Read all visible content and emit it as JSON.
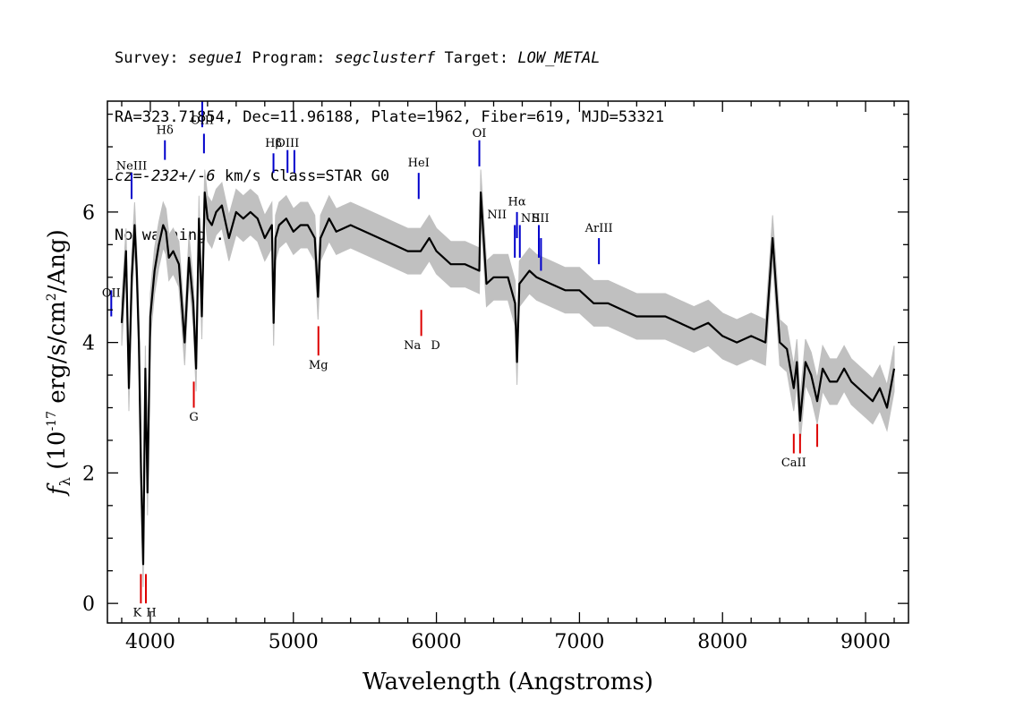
{
  "header": {
    "line1": {
      "survey_label": "Survey: ",
      "survey": "segue1",
      "program_label": " Program: ",
      "program": "segclusterf",
      "target_label": " Target: ",
      "target": "LOW_METAL"
    },
    "line2": "RA=323.71854, Dec=11.96188, Plate=1962, Fiber=619, MJD=53321",
    "line3": {
      "cz_label": "cz=",
      "cz": "-232+/-6",
      "rest": " km/s Class=STAR G0"
    },
    "line4": "No warnings."
  },
  "chart_data": {
    "type": "line",
    "xlabel": "Wavelength (Angstroms)",
    "ylabel": "f_λ (10^-17 erg/s/cm^2/Ang)",
    "ylabel_parts": {
      "f": "f",
      "lambda": "λ",
      "pre": " (10",
      "exp": "-17",
      "mid": " erg/s/cm",
      "exp2": "2",
      "post": "/Ang)"
    },
    "xlim": [
      3700,
      9300
    ],
    "ylim": [
      -0.3,
      7.7
    ],
    "xticks": [
      4000,
      5000,
      6000,
      7000,
      8000,
      9000
    ],
    "yticks": [
      0,
      2,
      4,
      6
    ],
    "colors": {
      "flux": "#000000",
      "error_band": "#c0c0c0",
      "emission": "#0000cc",
      "absorption": "#dd0000"
    },
    "flux_series": {
      "name": "flux",
      "x": [
        3800,
        3830,
        3850,
        3870,
        3890,
        3905,
        3920,
        3935,
        3950,
        3965,
        3980,
        4000,
        4030,
        4060,
        4090,
        4110,
        4130,
        4160,
        4200,
        4240,
        4270,
        4300,
        4320,
        4340,
        4360,
        4380,
        4400,
        4430,
        4460,
        4500,
        4550,
        4600,
        4650,
        4700,
        4750,
        4800,
        4850,
        4862,
        4875,
        4900,
        4950,
        5000,
        5050,
        5100,
        5150,
        5172,
        5190,
        5250,
        5300,
        5400,
        5500,
        5600,
        5700,
        5800,
        5890,
        5950,
        6000,
        6100,
        6200,
        6300,
        6310,
        6350,
        6400,
        6500,
        6550,
        6563,
        6580,
        6650,
        6700,
        6800,
        6900,
        7000,
        7100,
        7200,
        7300,
        7400,
        7500,
        7600,
        7700,
        7800,
        7900,
        8000,
        8100,
        8200,
        8300,
        8350,
        8400,
        8450,
        8498,
        8520,
        8542,
        8580,
        8620,
        8662,
        8700,
        8750,
        8800,
        8850,
        8900,
        8950,
        9000,
        9050,
        9100,
        9150,
        9200
      ],
      "y": [
        4.3,
        5.4,
        3.3,
        5.0,
        5.8,
        5.1,
        4.0,
        2.0,
        0.6,
        3.6,
        1.7,
        4.4,
        5.1,
        5.5,
        5.8,
        5.7,
        5.3,
        5.4,
        5.2,
        4.0,
        5.3,
        4.6,
        3.6,
        5.9,
        4.4,
        6.3,
        5.9,
        5.8,
        6.0,
        6.1,
        5.6,
        6.0,
        5.9,
        6.0,
        5.9,
        5.6,
        5.8,
        4.3,
        5.6,
        5.8,
        5.9,
        5.7,
        5.8,
        5.8,
        5.6,
        4.7,
        5.6,
        5.9,
        5.7,
        5.8,
        5.7,
        5.6,
        5.5,
        5.4,
        5.4,
        5.6,
        5.4,
        5.2,
        5.2,
        5.1,
        6.3,
        4.9,
        5.0,
        5.0,
        4.6,
        3.7,
        4.9,
        5.1,
        5.0,
        4.9,
        4.8,
        4.8,
        4.6,
        4.6,
        4.5,
        4.4,
        4.4,
        4.4,
        4.3,
        4.2,
        4.3,
        4.1,
        4.0,
        4.1,
        4.0,
        5.6,
        4.0,
        3.9,
        3.3,
        3.7,
        2.8,
        3.7,
        3.5,
        3.1,
        3.6,
        3.4,
        3.4,
        3.6,
        3.4,
        3.3,
        3.2,
        3.1,
        3.3,
        3.0,
        3.6
      ]
    },
    "error_band": {
      "name": "flux error",
      "half_width": 0.35
    },
    "lines": [
      {
        "label": "OII",
        "wave": 3727,
        "type": "emission",
        "ymin": 4.4,
        "ymax": 4.8,
        "label_y": 4.7
      },
      {
        "label": "NeIII",
        "wave": 3869,
        "type": "emission",
        "ymin": 6.2,
        "ymax": 6.6,
        "label_y": 6.65
      },
      {
        "label": "Hδ",
        "wave": 4102,
        "type": "emission",
        "ymin": 6.8,
        "ymax": 7.1,
        "label_y": 7.2
      },
      {
        "label": "OIII",
        "wave": 4363,
        "type": "emission",
        "ymin": 7.3,
        "ymax": 7.7,
        "label_y": 7.35
      },
      {
        "label": "",
        "wave": 4375,
        "type": "emission",
        "ymin": 6.9,
        "ymax": 7.2,
        "label_y": 0
      },
      {
        "label": "Hβ",
        "wave": 4861,
        "type": "emission",
        "ymin": 6.6,
        "ymax": 6.9,
        "label_y": 7.0
      },
      {
        "label": "OIII",
        "wave": 4959,
        "type": "emission",
        "ymin": 6.6,
        "ymax": 6.95,
        "label_y": 7.0
      },
      {
        "label": "",
        "wave": 5007,
        "type": "emission",
        "ymin": 6.6,
        "ymax": 6.95,
        "label_y": 0
      },
      {
        "label": "HeI",
        "wave": 5876,
        "type": "emission",
        "ymin": 6.2,
        "ymax": 6.6,
        "label_y": 6.7
      },
      {
        "label": "OI",
        "wave": 6300,
        "type": "emission",
        "ymin": 6.7,
        "ymax": 7.1,
        "label_y": 7.15
      },
      {
        "label": "NII",
        "wave": 6548,
        "type": "emission",
        "ymin": 5.3,
        "ymax": 5.8,
        "label_y": 5.9
      },
      {
        "label": "Hα",
        "wave": 6563,
        "type": "emission",
        "ymin": 5.6,
        "ymax": 6.0,
        "label_y": 6.1
      },
      {
        "label": "NII",
        "wave": 6583,
        "type": "emission",
        "ymin": 5.3,
        "ymax": 5.8,
        "label_y": 5.85
      },
      {
        "label": "SII",
        "wave": 6716,
        "type": "emission",
        "ymin": 5.3,
        "ymax": 5.8,
        "label_y": 5.85
      },
      {
        "label": "",
        "wave": 6731,
        "type": "emission",
        "ymin": 5.1,
        "ymax": 5.6,
        "label_y": 0
      },
      {
        "label": "ArIII",
        "wave": 7136,
        "type": "emission",
        "ymin": 5.2,
        "ymax": 5.6,
        "label_y": 5.7
      },
      {
        "label": "K",
        "wave": 3934,
        "type": "absorption",
        "ymin": 0.0,
        "ymax": 0.45,
        "label_y": -0.2
      },
      {
        "label": "H",
        "wave": 3969,
        "type": "absorption",
        "ymin": 0.0,
        "ymax": 0.45,
        "label_y": -0.2
      },
      {
        "label": "G",
        "wave": 4304,
        "type": "absorption",
        "ymin": 3.0,
        "ymax": 3.4,
        "label_y": 2.8
      },
      {
        "label": "Mg",
        "wave": 5175,
        "type": "absorption",
        "ymin": 3.8,
        "ymax": 4.25,
        "label_y": 3.6
      },
      {
        "label": "Na",
        "wave": 5894,
        "type": "absorption",
        "ymin": 4.1,
        "ymax": 4.5,
        "label_y": 3.9
      },
      {
        "label": "D",
        "wave": 5894,
        "type": "absorption",
        "ymin": 0,
        "ymax": 0,
        "label_y": 3.9,
        "dx": 0.0
      },
      {
        "label": "CaII",
        "wave": 8498,
        "type": "absorption",
        "ymin": 2.3,
        "ymax": 2.6,
        "label_y": 2.1
      },
      {
        "label": "",
        "wave": 8542,
        "type": "absorption",
        "ymin": 2.3,
        "ymax": 2.6,
        "label_y": 0
      },
      {
        "label": "",
        "wave": 8662,
        "type": "absorption",
        "ymin": 2.4,
        "ymax": 2.75,
        "label_y": 0
      }
    ]
  }
}
